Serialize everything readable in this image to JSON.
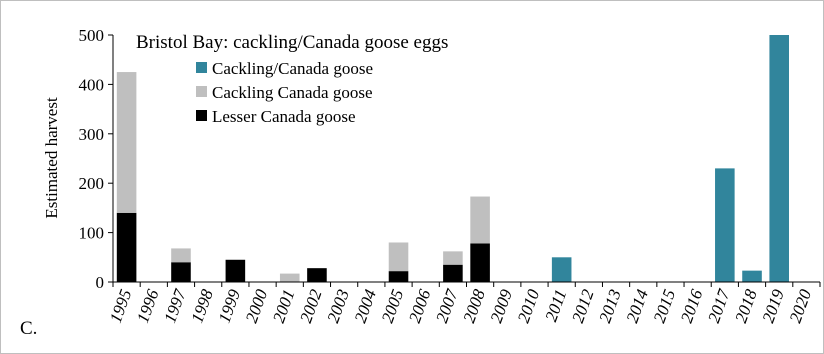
{
  "chart_data": {
    "type": "bar",
    "stacked": true,
    "title": "Bristol Bay: cackling/Canada goose eggs",
    "panel_label": "C.",
    "ylabel": "Estimated harvest",
    "xlabel": "",
    "ylim": [
      0,
      500
    ],
    "yticks": [
      0,
      100,
      200,
      300,
      400,
      500
    ],
    "categories": [
      "1995",
      "1996",
      "1997",
      "1998",
      "1999",
      "2000",
      "2001",
      "2002",
      "2003",
      "2004",
      "2005",
      "2006",
      "2007",
      "2008",
      "2009",
      "2010",
      "2011",
      "2012",
      "2013",
      "2014",
      "2015",
      "2016",
      "2017",
      "2018",
      "2019",
      "2020"
    ],
    "series": [
      {
        "name": "Lesser Canada goose",
        "color": "#000000",
        "values": [
          140,
          0,
          40,
          0,
          45,
          0,
          0,
          28,
          0,
          0,
          22,
          0,
          35,
          78,
          0,
          0,
          0,
          0,
          0,
          0,
          0,
          0,
          0,
          0,
          0,
          0
        ]
      },
      {
        "name": "Cackling Canada goose",
        "color": "#bfbfbf",
        "values": [
          285,
          0,
          28,
          0,
          0,
          0,
          17,
          0,
          0,
          0,
          58,
          0,
          27,
          95,
          0,
          0,
          0,
          0,
          0,
          0,
          0,
          0,
          0,
          0,
          0,
          0
        ]
      },
      {
        "name": "Cackling/Canada goose",
        "color": "#31859c",
        "values": [
          0,
          0,
          0,
          0,
          0,
          0,
          0,
          0,
          0,
          0,
          0,
          0,
          0,
          0,
          0,
          0,
          50,
          0,
          0,
          0,
          0,
          0,
          230,
          23,
          500,
          0
        ]
      }
    ],
    "legend": [
      {
        "name": "Cackling/Canada goose",
        "color": "#31859c"
      },
      {
        "name": "Cackling Canada goose",
        "color": "#bfbfbf"
      },
      {
        "name": "Lesser Canada goose",
        "color": "#000000"
      }
    ],
    "legend_position": "top-left",
    "grid": false
  }
}
